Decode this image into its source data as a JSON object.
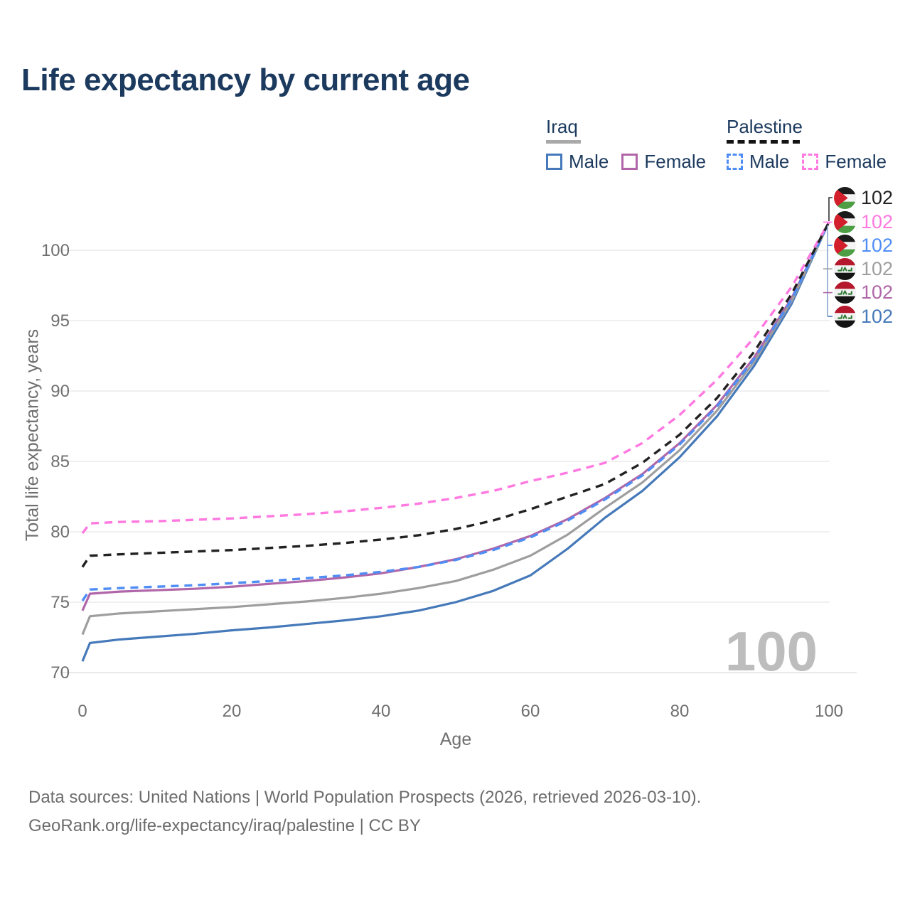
{
  "title": "Life expectancy by current age",
  "watermark": "100",
  "legend": {
    "groups": [
      {
        "label": "Iraq",
        "line_style": "solid",
        "items": [
          {
            "label": "Male"
          },
          {
            "label": "Female"
          }
        ]
      },
      {
        "label": "Palestine",
        "line_style": "dashed",
        "items": [
          {
            "label": "Male"
          },
          {
            "label": "Female"
          }
        ]
      }
    ]
  },
  "source": {
    "line1": "Data sources: United Nations | World Population Prospects (2026, retrieved 2026-03-10).",
    "line2": "GeoRank.org/life-expectancy/iraq/palestine | CC BY"
  },
  "colors": {
    "iraq_male": "#4579b9",
    "iraq_female": "#b066a8",
    "iraq_both": "#9e9e9e",
    "palestine_male": "#4f8df5",
    "palestine_female": "#ff79e1",
    "palestine_both": "#222222",
    "title_text": "#1c3a5e",
    "axis_text": "#6f6f6f",
    "grid": "#ececec",
    "watermark": "#bdbdbd"
  },
  "chart_data": {
    "type": "line",
    "title": "Life expectancy by current age",
    "xlabel": "Age",
    "ylabel": "Total life expectancy, years",
    "xlim": [
      0,
      100
    ],
    "ylim": [
      70,
      102
    ],
    "x_ticks": [
      0,
      20,
      40,
      60,
      80,
      100
    ],
    "y_ticks": [
      70,
      75,
      80,
      85,
      90,
      95,
      100
    ],
    "grid": "horizontal",
    "legend_position": "top-right",
    "ages": [
      0,
      1,
      5,
      10,
      15,
      20,
      25,
      30,
      35,
      40,
      45,
      50,
      55,
      60,
      65,
      70,
      75,
      80,
      85,
      90,
      95,
      100
    ],
    "series": [
      {
        "name": "Palestine",
        "sex": "both",
        "line_style": "dashed",
        "flag": "palestine",
        "color_key": "palestine_both",
        "end_value": 102,
        "values": [
          77.5,
          78.3,
          78.4,
          78.5,
          78.6,
          78.7,
          78.85,
          79.0,
          79.2,
          79.45,
          79.75,
          80.2,
          80.8,
          81.6,
          82.5,
          83.4,
          84.9,
          86.9,
          89.5,
          92.8,
          96.9,
          102
        ]
      },
      {
        "name": "Palestine Female",
        "sex": "female",
        "line_style": "dashed",
        "flag": "palestine",
        "color_key": "palestine_female",
        "end_value": 102,
        "values": [
          79.9,
          80.6,
          80.7,
          80.75,
          80.85,
          80.95,
          81.1,
          81.25,
          81.45,
          81.7,
          82.0,
          82.4,
          82.9,
          83.6,
          84.2,
          84.9,
          86.3,
          88.3,
          90.8,
          93.8,
          97.4,
          102
        ]
      },
      {
        "name": "Palestine Male",
        "sex": "male",
        "line_style": "dashed",
        "flag": "palestine",
        "color_key": "palestine_male",
        "end_value": 102,
        "values": [
          75.1,
          75.9,
          76.0,
          76.1,
          76.2,
          76.35,
          76.5,
          76.7,
          76.9,
          77.15,
          77.5,
          78.0,
          78.7,
          79.6,
          80.8,
          82.3,
          84.0,
          86.2,
          88.9,
          92.3,
          96.5,
          102
        ]
      },
      {
        "name": "Iraq",
        "sex": "both",
        "line_style": "solid",
        "flag": "iraq",
        "color_key": "iraq_both",
        "end_value": 102,
        "values": [
          72.7,
          74.0,
          74.2,
          74.35,
          74.5,
          74.65,
          74.85,
          75.05,
          75.3,
          75.6,
          76.0,
          76.5,
          77.3,
          78.3,
          79.8,
          81.7,
          83.5,
          85.8,
          88.6,
          92.1,
          96.4,
          102
        ]
      },
      {
        "name": "Iraq Female",
        "sex": "female",
        "line_style": "solid",
        "flag": "iraq",
        "color_key": "iraq_female",
        "end_value": 102,
        "values": [
          74.4,
          75.6,
          75.75,
          75.85,
          75.95,
          76.1,
          76.3,
          76.5,
          76.75,
          77.05,
          77.5,
          78.05,
          78.8,
          79.7,
          80.9,
          82.4,
          84.1,
          86.3,
          89.0,
          92.4,
          96.6,
          102
        ]
      },
      {
        "name": "Iraq Male",
        "sex": "male",
        "line_style": "solid",
        "flag": "iraq",
        "color_key": "iraq_male",
        "end_value": 102,
        "values": [
          70.8,
          72.1,
          72.35,
          72.55,
          72.75,
          73.0,
          73.2,
          73.45,
          73.7,
          74.0,
          74.4,
          75.0,
          75.8,
          76.9,
          78.8,
          81.0,
          82.9,
          85.3,
          88.2,
          91.8,
          96.2,
          102
        ]
      }
    ]
  }
}
